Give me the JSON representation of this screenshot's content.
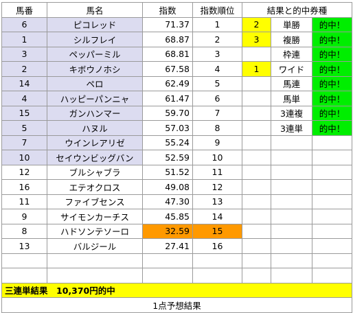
{
  "headers": {
    "uma": "馬番",
    "name": "馬名",
    "index": "指数",
    "rank": "指数順位",
    "results": "結果と的中券種"
  },
  "rows": [
    {
      "uma": "6",
      "name": "ピコレッド",
      "index": "71.37",
      "rank": "1",
      "result_num": "2",
      "ticket": "単勝",
      "hit": "的中！"
    },
    {
      "uma": "1",
      "name": "シルフレイ",
      "index": "68.87",
      "rank": "2",
      "result_num": "3",
      "ticket": "複勝",
      "hit": "的中！"
    },
    {
      "uma": "3",
      "name": "ペッパーミル",
      "index": "68.81",
      "rank": "3",
      "result_num": "",
      "ticket": "枠連",
      "hit": "的中！"
    },
    {
      "uma": "2",
      "name": "キボウノホシ",
      "index": "67.58",
      "rank": "4",
      "result_num": "1",
      "ticket": "ワイド",
      "hit": "的中！"
    },
    {
      "uma": "14",
      "name": "ペロ",
      "index": "62.49",
      "rank": "5",
      "result_num": "",
      "ticket": "馬連",
      "hit": "的中！"
    },
    {
      "uma": "4",
      "name": "ハッピーパンニャ",
      "index": "61.47",
      "rank": "6",
      "result_num": "",
      "ticket": "馬単",
      "hit": "的中！"
    },
    {
      "uma": "15",
      "name": "ガンハンマー",
      "index": "59.70",
      "rank": "7",
      "result_num": "",
      "ticket": "3連複",
      "hit": "的中！"
    },
    {
      "uma": "5",
      "name": "ハヌル",
      "index": "57.03",
      "rank": "8",
      "result_num": "",
      "ticket": "3連単",
      "hit": "的中！"
    },
    {
      "uma": "7",
      "name": "ウインレアリゼ",
      "index": "55.24",
      "rank": "9",
      "result_num": "",
      "ticket": "",
      "hit": ""
    },
    {
      "uma": "10",
      "name": "セイウンビッグバン",
      "index": "52.59",
      "rank": "10",
      "result_num": "",
      "ticket": "",
      "hit": ""
    },
    {
      "uma": "12",
      "name": "ブルシャブラ",
      "index": "51.52",
      "rank": "11",
      "result_num": "",
      "ticket": "",
      "hit": ""
    },
    {
      "uma": "16",
      "name": "エテオクロス",
      "index": "49.08",
      "rank": "12",
      "result_num": "",
      "ticket": "",
      "hit": ""
    },
    {
      "uma": "11",
      "name": "ファイブセンス",
      "index": "47.30",
      "rank": "13",
      "result_num": "",
      "ticket": "",
      "hit": ""
    },
    {
      "uma": "9",
      "name": "サイモンカーチス",
      "index": "45.85",
      "rank": "14",
      "result_num": "",
      "ticket": "",
      "hit": ""
    },
    {
      "uma": "8",
      "name": "ハドソンテソーロ",
      "index": "32.59",
      "rank": "15",
      "result_num": "",
      "ticket": "",
      "hit": ""
    },
    {
      "uma": "13",
      "name": "バルジール",
      "index": "27.41",
      "rank": "16",
      "result_num": "",
      "ticket": "",
      "hit": ""
    },
    {
      "uma": "",
      "name": "",
      "index": "",
      "rank": "",
      "result_num": "",
      "ticket": "",
      "hit": ""
    },
    {
      "uma": "",
      "name": "",
      "index": "",
      "rank": "",
      "result_num": "",
      "ticket": "",
      "hit": ""
    }
  ],
  "footer": {
    "summary": "三連単結果　10,370円的中",
    "caption": "1点予想結果"
  },
  "colors": {
    "purple": "#dcdcf0",
    "orange": "#ff9900",
    "yellow": "#ffff00",
    "green": "#00ee00"
  }
}
